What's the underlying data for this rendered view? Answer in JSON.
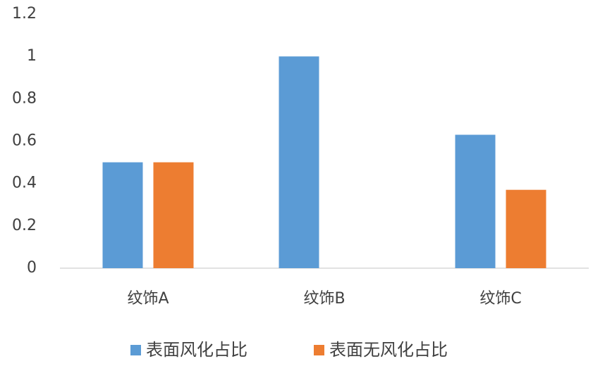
{
  "chart_data": {
    "type": "bar",
    "categories": [
      "纹饰A",
      "纹饰B",
      "纹饰C"
    ],
    "series": [
      {
        "name": "表面风化占比",
        "color": "#5b9bd5",
        "values": [
          0.5,
          1,
          0.63
        ]
      },
      {
        "name": "表面无风化占比",
        "color": "#ed7d31",
        "values": [
          0.5,
          0,
          0.37
        ]
      }
    ],
    "ylim": [
      0,
      1.2
    ],
    "yticks": [
      0,
      0.2,
      0.4,
      0.6,
      0.8,
      1,
      1.2
    ],
    "grid": false,
    "legend": "bottom"
  }
}
